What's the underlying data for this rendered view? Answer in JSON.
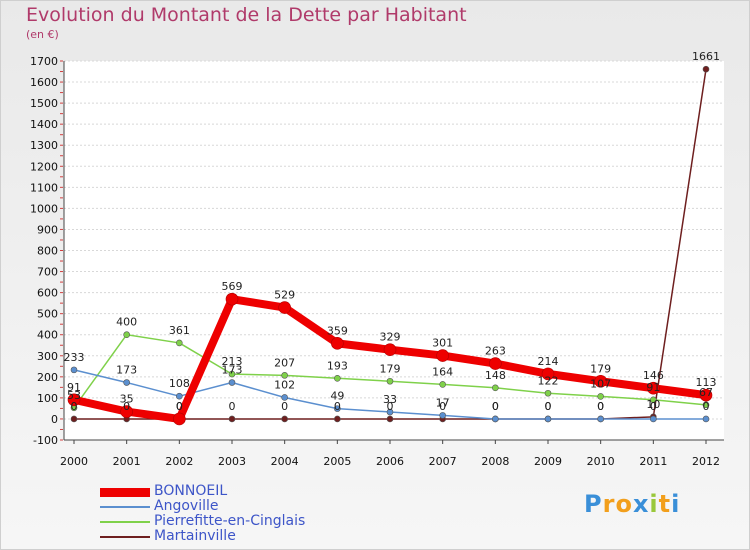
{
  "chart_data": {
    "type": "line",
    "title": "Evolution du Montant de la Dette par Habitant",
    "subtitle": "(en €)",
    "x": [
      "2000",
      "2001",
      "2002",
      "2003",
      "2004",
      "2005",
      "2006",
      "2007",
      "2008",
      "2009",
      "2010",
      "2011",
      "2012"
    ],
    "ylim": [
      -100,
      1700
    ],
    "yticks": [
      -100,
      0,
      100,
      200,
      300,
      400,
      500,
      600,
      700,
      800,
      900,
      1000,
      1100,
      1200,
      1300,
      1400,
      1500,
      1600,
      1700
    ],
    "series": [
      {
        "name": "BONNOEIL",
        "color": "#ee0000",
        "values": [
          91,
          35,
          0,
          569,
          529,
          359,
          329,
          301,
          263,
          214,
          179,
          146,
          113
        ]
      },
      {
        "name": "Angoville",
        "color": "#5b8fcf",
        "values": [
          233,
          173,
          108,
          173,
          102,
          49,
          33,
          17,
          0,
          0,
          0,
          0,
          0
        ]
      },
      {
        "name": "Pierrefitte-en-Cinglais",
        "color": "#7fd14a",
        "values": [
          53,
          400,
          361,
          213,
          207,
          193,
          179,
          164,
          148,
          122,
          107,
          91,
          67
        ]
      },
      {
        "name": "Martainville",
        "color": "#6e1f1f",
        "values": [
          0,
          0,
          0,
          0,
          0,
          0,
          0,
          0,
          0,
          0,
          0,
          10,
          1661
        ]
      }
    ]
  },
  "logo": {
    "letters": [
      "P",
      "r",
      "o",
      "x",
      "i",
      "t",
      "i"
    ],
    "colors": [
      "#3a8fd8",
      "#f29f1c",
      "#f29f1c",
      "#3a8fd8",
      "#9ac83b",
      "#f29f1c",
      "#3a8fd8"
    ]
  }
}
